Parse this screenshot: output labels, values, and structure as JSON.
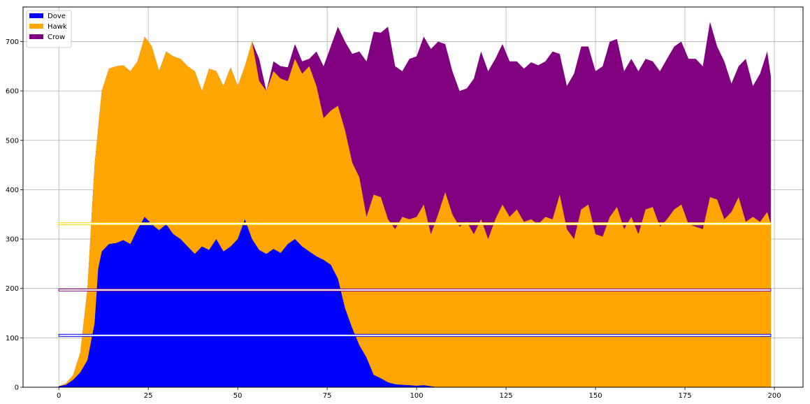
{
  "chart_data": {
    "type": "area",
    "stacked": true,
    "grid": true,
    "legend_position": "top-left",
    "xlim": [
      -10,
      208
    ],
    "ylim": [
      0,
      770
    ],
    "xticks": [
      0,
      25,
      50,
      75,
      100,
      125,
      150,
      175,
      200
    ],
    "yticks": [
      0,
      100,
      200,
      300,
      400,
      500,
      600,
      700
    ],
    "series": [
      {
        "name": "Dove",
        "color": "#0000ff",
        "points": [
          [
            0,
            2
          ],
          [
            2,
            5
          ],
          [
            4,
            15
          ],
          [
            6,
            30
          ],
          [
            8,
            55
          ],
          [
            10,
            130
          ],
          [
            11,
            240
          ],
          [
            12,
            275
          ],
          [
            14,
            290
          ],
          [
            16,
            292
          ],
          [
            18,
            298
          ],
          [
            20,
            290
          ],
          [
            22,
            320
          ],
          [
            24,
            345
          ],
          [
            26,
            330
          ],
          [
            28,
            318
          ],
          [
            30,
            330
          ],
          [
            32,
            310
          ],
          [
            34,
            300
          ],
          [
            36,
            285
          ],
          [
            38,
            270
          ],
          [
            40,
            285
          ],
          [
            42,
            278
          ],
          [
            44,
            300
          ],
          [
            46,
            275
          ],
          [
            48,
            285
          ],
          [
            50,
            300
          ],
          [
            52,
            340
          ],
          [
            54,
            300
          ],
          [
            56,
            278
          ],
          [
            58,
            270
          ],
          [
            60,
            280
          ],
          [
            62,
            272
          ],
          [
            64,
            290
          ],
          [
            66,
            300
          ],
          [
            68,
            285
          ],
          [
            70,
            275
          ],
          [
            72,
            265
          ],
          [
            74,
            258
          ],
          [
            76,
            248
          ],
          [
            78,
            220
          ],
          [
            80,
            160
          ],
          [
            82,
            120
          ],
          [
            84,
            85
          ],
          [
            86,
            60
          ],
          [
            88,
            25
          ],
          [
            90,
            18
          ],
          [
            92,
            10
          ],
          [
            94,
            6
          ],
          [
            96,
            5
          ],
          [
            98,
            4
          ],
          [
            100,
            3
          ],
          [
            102,
            4
          ],
          [
            104,
            2
          ],
          [
            106,
            0
          ],
          [
            199,
            0
          ]
        ]
      },
      {
        "name": "Hawk",
        "color": "#ffa500",
        "points": [
          [
            0,
            2
          ],
          [
            2,
            8
          ],
          [
            4,
            25
          ],
          [
            6,
            70
          ],
          [
            8,
            200
          ],
          [
            10,
            450
          ],
          [
            12,
            600
          ],
          [
            14,
            645
          ],
          [
            16,
            650
          ],
          [
            18,
            652
          ],
          [
            20,
            640
          ],
          [
            22,
            660
          ],
          [
            24,
            710
          ],
          [
            26,
            690
          ],
          [
            28,
            640
          ],
          [
            30,
            680
          ],
          [
            32,
            670
          ],
          [
            34,
            665
          ],
          [
            36,
            650
          ],
          [
            38,
            640
          ],
          [
            40,
            600
          ],
          [
            42,
            645
          ],
          [
            44,
            640
          ],
          [
            46,
            610
          ],
          [
            48,
            648
          ],
          [
            50,
            610
          ],
          [
            52,
            650
          ],
          [
            54,
            700
          ],
          [
            56,
            620
          ],
          [
            58,
            600
          ],
          [
            60,
            640
          ],
          [
            62,
            625
          ],
          [
            64,
            620
          ],
          [
            66,
            665
          ],
          [
            68,
            635
          ],
          [
            70,
            650
          ],
          [
            72,
            610
          ],
          [
            74,
            545
          ],
          [
            76,
            560
          ],
          [
            78,
            570
          ],
          [
            80,
            520
          ],
          [
            82,
            455
          ],
          [
            84,
            425
          ],
          [
            86,
            345
          ],
          [
            88,
            390
          ],
          [
            90,
            385
          ],
          [
            92,
            340
          ],
          [
            94,
            320
          ],
          [
            96,
            345
          ],
          [
            98,
            340
          ],
          [
            100,
            345
          ],
          [
            102,
            370
          ],
          [
            104,
            310
          ],
          [
            106,
            350
          ],
          [
            108,
            395
          ],
          [
            110,
            350
          ],
          [
            112,
            325
          ],
          [
            114,
            335
          ],
          [
            116,
            310
          ],
          [
            118,
            340
          ],
          [
            120,
            300
          ],
          [
            122,
            340
          ],
          [
            124,
            370
          ],
          [
            126,
            345
          ],
          [
            128,
            360
          ],
          [
            130,
            335
          ],
          [
            132,
            340
          ],
          [
            134,
            330
          ],
          [
            136,
            345
          ],
          [
            138,
            340
          ],
          [
            140,
            390
          ],
          [
            142,
            320
          ],
          [
            144,
            300
          ],
          [
            146,
            360
          ],
          [
            148,
            370
          ],
          [
            150,
            310
          ],
          [
            152,
            305
          ],
          [
            154,
            345
          ],
          [
            156,
            365
          ],
          [
            158,
            320
          ],
          [
            160,
            345
          ],
          [
            162,
            310
          ],
          [
            164,
            360
          ],
          [
            166,
            365
          ],
          [
            168,
            325
          ],
          [
            170,
            340
          ],
          [
            172,
            360
          ],
          [
            174,
            370
          ],
          [
            176,
            330
          ],
          [
            178,
            325
          ],
          [
            180,
            320
          ],
          [
            182,
            385
          ],
          [
            184,
            380
          ],
          [
            186,
            340
          ],
          [
            188,
            355
          ],
          [
            190,
            385
          ],
          [
            192,
            335
          ],
          [
            194,
            345
          ],
          [
            196,
            335
          ],
          [
            198,
            355
          ],
          [
            199,
            330
          ]
        ]
      },
      {
        "name": "Crow",
        "color": "#800080",
        "points": [
          [
            0,
            2
          ],
          [
            2,
            8
          ],
          [
            4,
            25
          ],
          [
            6,
            70
          ],
          [
            8,
            200
          ],
          [
            10,
            450
          ],
          [
            12,
            600
          ],
          [
            14,
            645
          ],
          [
            16,
            650
          ],
          [
            18,
            652
          ],
          [
            20,
            640
          ],
          [
            22,
            660
          ],
          [
            24,
            710
          ],
          [
            26,
            690
          ],
          [
            28,
            640
          ],
          [
            30,
            680
          ],
          [
            32,
            670
          ],
          [
            34,
            665
          ],
          [
            36,
            650
          ],
          [
            38,
            640
          ],
          [
            40,
            600
          ],
          [
            42,
            645
          ],
          [
            44,
            640
          ],
          [
            46,
            610
          ],
          [
            48,
            648
          ],
          [
            50,
            610
          ],
          [
            52,
            650
          ],
          [
            54,
            700
          ],
          [
            56,
            665
          ],
          [
            58,
            600
          ],
          [
            60,
            660
          ],
          [
            62,
            650
          ],
          [
            64,
            648
          ],
          [
            66,
            695
          ],
          [
            68,
            660
          ],
          [
            70,
            665
          ],
          [
            72,
            680
          ],
          [
            74,
            650
          ],
          [
            76,
            690
          ],
          [
            78,
            730
          ],
          [
            80,
            700
          ],
          [
            82,
            675
          ],
          [
            84,
            680
          ],
          [
            86,
            660
          ],
          [
            88,
            720
          ],
          [
            90,
            718
          ],
          [
            92,
            730
          ],
          [
            94,
            650
          ],
          [
            96,
            640
          ],
          [
            98,
            665
          ],
          [
            100,
            670
          ],
          [
            102,
            710
          ],
          [
            104,
            685
          ],
          [
            106,
            700
          ],
          [
            108,
            695
          ],
          [
            110,
            640
          ],
          [
            112,
            600
          ],
          [
            114,
            605
          ],
          [
            116,
            625
          ],
          [
            118,
            680
          ],
          [
            120,
            640
          ],
          [
            122,
            665
          ],
          [
            124,
            695
          ],
          [
            126,
            660
          ],
          [
            128,
            660
          ],
          [
            130,
            645
          ],
          [
            132,
            658
          ],
          [
            134,
            652
          ],
          [
            136,
            660
          ],
          [
            138,
            680
          ],
          [
            140,
            675
          ],
          [
            142,
            610
          ],
          [
            144,
            635
          ],
          [
            146,
            690
          ],
          [
            148,
            690
          ],
          [
            150,
            640
          ],
          [
            152,
            650
          ],
          [
            154,
            700
          ],
          [
            156,
            705
          ],
          [
            158,
            640
          ],
          [
            160,
            665
          ],
          [
            162,
            640
          ],
          [
            164,
            665
          ],
          [
            166,
            660
          ],
          [
            168,
            640
          ],
          [
            170,
            665
          ],
          [
            172,
            690
          ],
          [
            174,
            700
          ],
          [
            176,
            665
          ],
          [
            178,
            665
          ],
          [
            180,
            650
          ],
          [
            182,
            740
          ],
          [
            184,
            690
          ],
          [
            186,
            660
          ],
          [
            188,
            615
          ],
          [
            190,
            650
          ],
          [
            192,
            665
          ],
          [
            194,
            610
          ],
          [
            196,
            635
          ],
          [
            198,
            680
          ],
          [
            199,
            630
          ]
        ]
      }
    ],
    "reference_lines": [
      {
        "y": 331,
        "color": "#ffd700"
      },
      {
        "y": 197,
        "color": "#800080"
      },
      {
        "y": 105,
        "color": "#0000ff"
      }
    ]
  }
}
